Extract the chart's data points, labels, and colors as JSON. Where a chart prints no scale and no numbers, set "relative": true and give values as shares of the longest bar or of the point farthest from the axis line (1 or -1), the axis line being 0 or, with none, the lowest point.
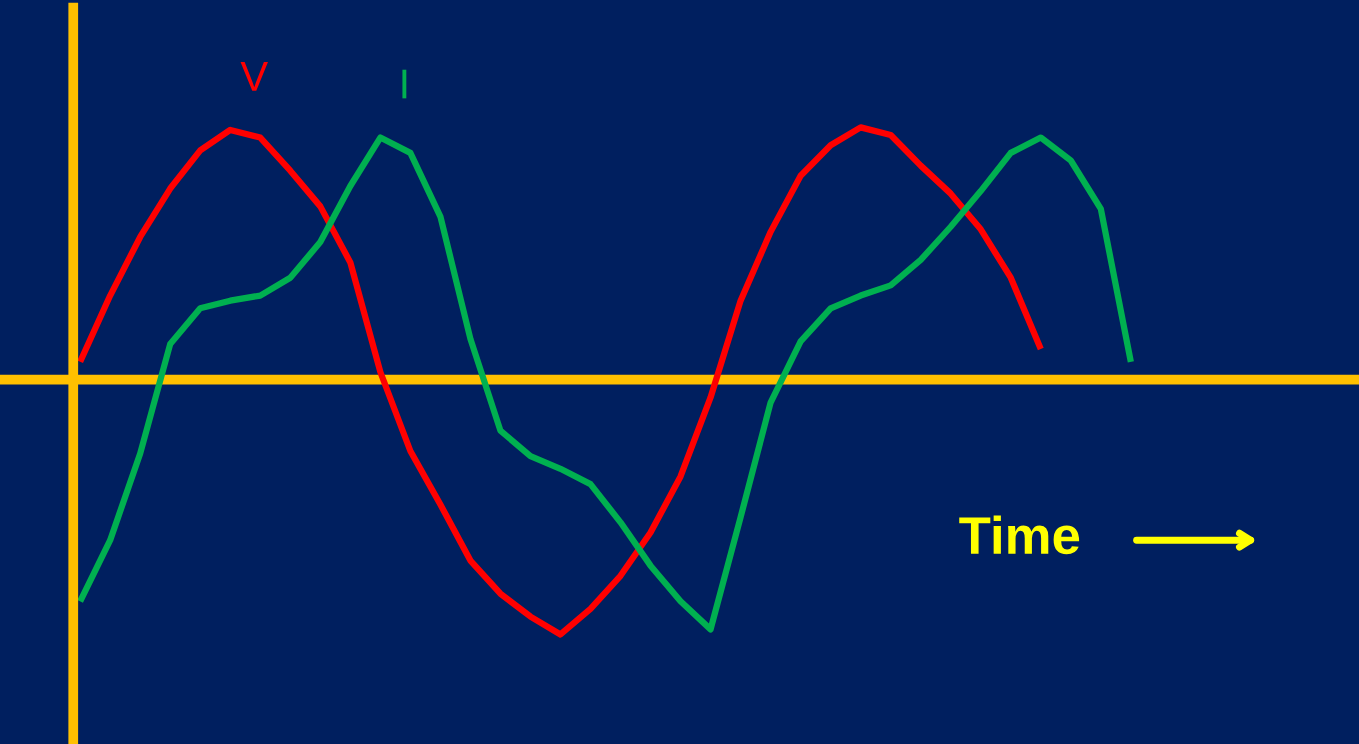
{
  "chart_data": {
    "type": "line",
    "relative": true,
    "xlabel": "Time",
    "legend": false,
    "grid": false,
    "ref_lines": [
      {
        "axis": "y",
        "value": 0,
        "color": "#ffc000"
      }
    ],
    "marker": "none",
    "line_style": "solid",
    "categories": [
      null,
      null,
      null,
      null,
      null,
      null,
      null,
      null,
      null,
      null,
      null,
      null,
      null,
      null,
      null,
      null,
      null,
      null,
      null,
      null,
      null,
      null,
      null,
      null,
      null,
      null,
      null,
      null,
      null,
      null,
      null,
      null,
      null,
      null,
      null,
      null
    ],
    "series": [
      {
        "name": "V",
        "color": "#ff0000",
        "values": [
          0.07,
          0.33,
          0.56,
          0.75,
          0.9,
          0.98,
          0.95,
          0.82,
          0.68,
          0.46,
          0.03,
          -0.28,
          -0.49,
          -0.71,
          -0.84,
          -0.93,
          -1.0,
          -0.9,
          -0.77,
          -0.6,
          -0.38,
          -0.07,
          0.31,
          0.58,
          0.8,
          0.92,
          0.99,
          0.96,
          0.84,
          0.73,
          0.59,
          0.4,
          0.12,
          null,
          null,
          null
        ]
      },
      {
        "name": "I",
        "color": "#00b050",
        "values": [
          -0.87,
          -0.63,
          -0.29,
          0.14,
          0.28,
          0.31,
          0.33,
          0.4,
          0.54,
          0.76,
          0.95,
          0.89,
          0.64,
          0.16,
          -0.2,
          -0.3,
          -0.35,
          -0.41,
          -0.56,
          -0.73,
          -0.87,
          -0.98,
          -0.54,
          -0.09,
          0.15,
          0.28,
          0.33,
          0.37,
          0.47,
          0.6,
          0.74,
          0.89,
          0.95,
          0.86,
          0.67,
          0.07
        ]
      }
    ]
  }
}
